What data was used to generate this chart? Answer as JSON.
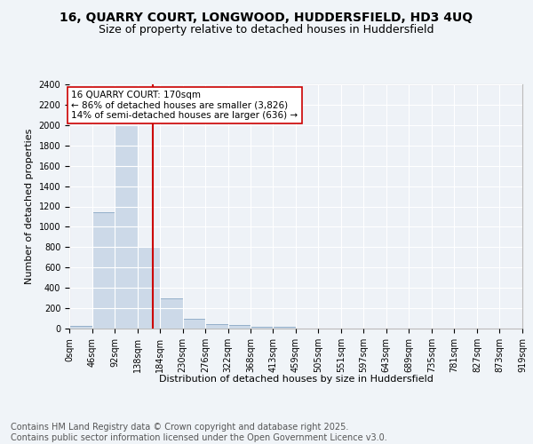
{
  "title_line1": "16, QUARRY COURT, LONGWOOD, HUDDERSFIELD, HD3 4UQ",
  "title_line2": "Size of property relative to detached houses in Huddersfield",
  "xlabel": "Distribution of detached houses by size in Huddersfield",
  "ylabel": "Number of detached properties",
  "bin_edges": [
    0,
    46,
    92,
    138,
    184,
    230,
    276,
    322,
    368,
    413,
    459,
    505,
    551,
    597,
    643,
    689,
    735,
    781,
    827,
    873,
    919
  ],
  "bin_counts": [
    30,
    1140,
    2000,
    800,
    300,
    100,
    45,
    35,
    20,
    15,
    0,
    0,
    0,
    0,
    0,
    0,
    0,
    0,
    0,
    0
  ],
  "bar_color": "#ccd9e8",
  "bar_edge_color": "#7799bb",
  "vline_x": 170,
  "vline_color": "#cc0000",
  "annotation_text": "16 QUARRY COURT: 170sqm\n← 86% of detached houses are smaller (3,826)\n14% of semi-detached houses are larger (636) →",
  "annotation_box_color": "#ffffff",
  "annotation_box_edge": "#cc0000",
  "ylim": [
    0,
    2400
  ],
  "yticks": [
    0,
    200,
    400,
    600,
    800,
    1000,
    1200,
    1400,
    1600,
    1800,
    2000,
    2200,
    2400
  ],
  "tick_labels": [
    "0sqm",
    "46sqm",
    "92sqm",
    "138sqm",
    "184sqm",
    "230sqm",
    "276sqm",
    "322sqm",
    "368sqm",
    "413sqm",
    "459sqm",
    "505sqm",
    "551sqm",
    "597sqm",
    "643sqm",
    "689sqm",
    "735sqm",
    "781sqm",
    "827sqm",
    "873sqm",
    "919sqm"
  ],
  "footnote": "Contains HM Land Registry data © Crown copyright and database right 2025.\nContains public sector information licensed under the Open Government Licence v3.0.",
  "bg_color": "#f0f4f8",
  "plot_bg_color": "#eef2f7",
  "grid_color": "#ffffff",
  "title_fontsize": 10,
  "subtitle_fontsize": 9,
  "axis_fontsize": 8,
  "tick_fontsize": 7,
  "footnote_fontsize": 7,
  "annotation_fontsize": 7.5
}
